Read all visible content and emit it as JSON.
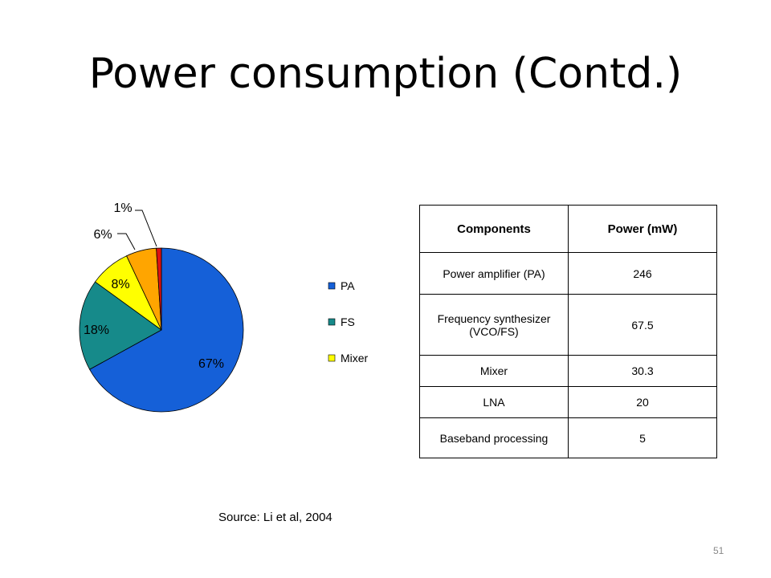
{
  "slide": {
    "title": "Power consumption (Contd.)",
    "source": "Source: Li et al, 2004",
    "page_number": "51"
  },
  "chart_data": {
    "type": "pie",
    "slices": [
      {
        "name": "PA",
        "label": "67%",
        "value": 67,
        "color": "#1560d8"
      },
      {
        "name": "FS",
        "label": "18%",
        "value": 18,
        "color": "#168a8a"
      },
      {
        "name": "Mixer",
        "label": "8%",
        "value": 8,
        "color": "#ffff00"
      },
      {
        "name": "",
        "label": "6%",
        "value": 6,
        "color": "#ffa500"
      },
      {
        "name": "",
        "label": "1%",
        "value": 1,
        "color": "#dd1111"
      }
    ],
    "legend": {
      "placement": "right",
      "entries": [
        "PA",
        "FS",
        "Mixer"
      ]
    }
  },
  "table": {
    "headers": [
      "Components",
      "Power (mW)"
    ],
    "rows": [
      [
        "Power amplifier (PA)",
        "246"
      ],
      [
        "Frequency synthesizer (VCO/FS)",
        "67.5"
      ],
      [
        "Mixer",
        "30.3"
      ],
      [
        "LNA",
        "20"
      ],
      [
        "Baseband processing",
        "5"
      ]
    ]
  }
}
